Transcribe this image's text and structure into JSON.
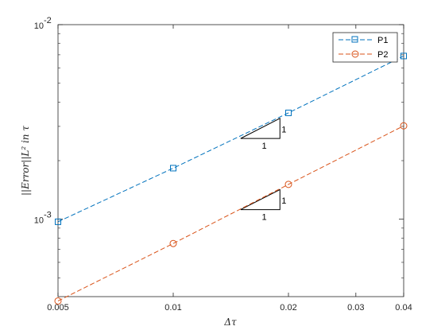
{
  "chart_data": {
    "type": "line",
    "title": "",
    "xlabel": "Δτ",
    "ylabel": "||Error||L² in τ",
    "x_scale": "log",
    "y_scale": "log",
    "xlim": [
      0.005,
      0.04
    ],
    "ylim": [
      0.0004,
      0.01
    ],
    "x_ticks": [
      {
        "value": 0.005,
        "label": "0.005"
      },
      {
        "value": 0.01,
        "label": "0.01"
      },
      {
        "value": 0.02,
        "label": "0.02"
      },
      {
        "value": 0.03,
        "label": "0.03"
      },
      {
        "value": 0.04,
        "label": "0.04"
      }
    ],
    "y_ticks": [
      {
        "value": 0.001,
        "base": "10",
        "exp": "-3"
      },
      {
        "value": 0.01,
        "base": "10",
        "exp": "-2"
      }
    ],
    "grid": false,
    "legend_position": "top-right",
    "series": [
      {
        "name": "P1",
        "color": "#0072BD",
        "marker": "square",
        "line_style": "dashed",
        "x": [
          0.005,
          0.01,
          0.02,
          0.04
        ],
        "y": [
          0.00097,
          0.00183,
          0.00352,
          0.0069
        ]
      },
      {
        "name": "P2",
        "color": "#D95319",
        "marker": "circle",
        "line_style": "dashed",
        "x": [
          0.005,
          0.01,
          0.02,
          0.04
        ],
        "y": [
          0.00038,
          0.00075,
          0.00151,
          0.00302
        ]
      }
    ],
    "slope_triangles": [
      {
        "x0": 0.015,
        "x1": 0.019,
        "y0": 0.0026,
        "y1": 0.0033,
        "run_label": "1",
        "rise_label": "1"
      },
      {
        "x0": 0.015,
        "x1": 0.019,
        "y0": 0.00112,
        "y1": 0.00142,
        "run_label": "1",
        "rise_label": "1"
      }
    ]
  }
}
